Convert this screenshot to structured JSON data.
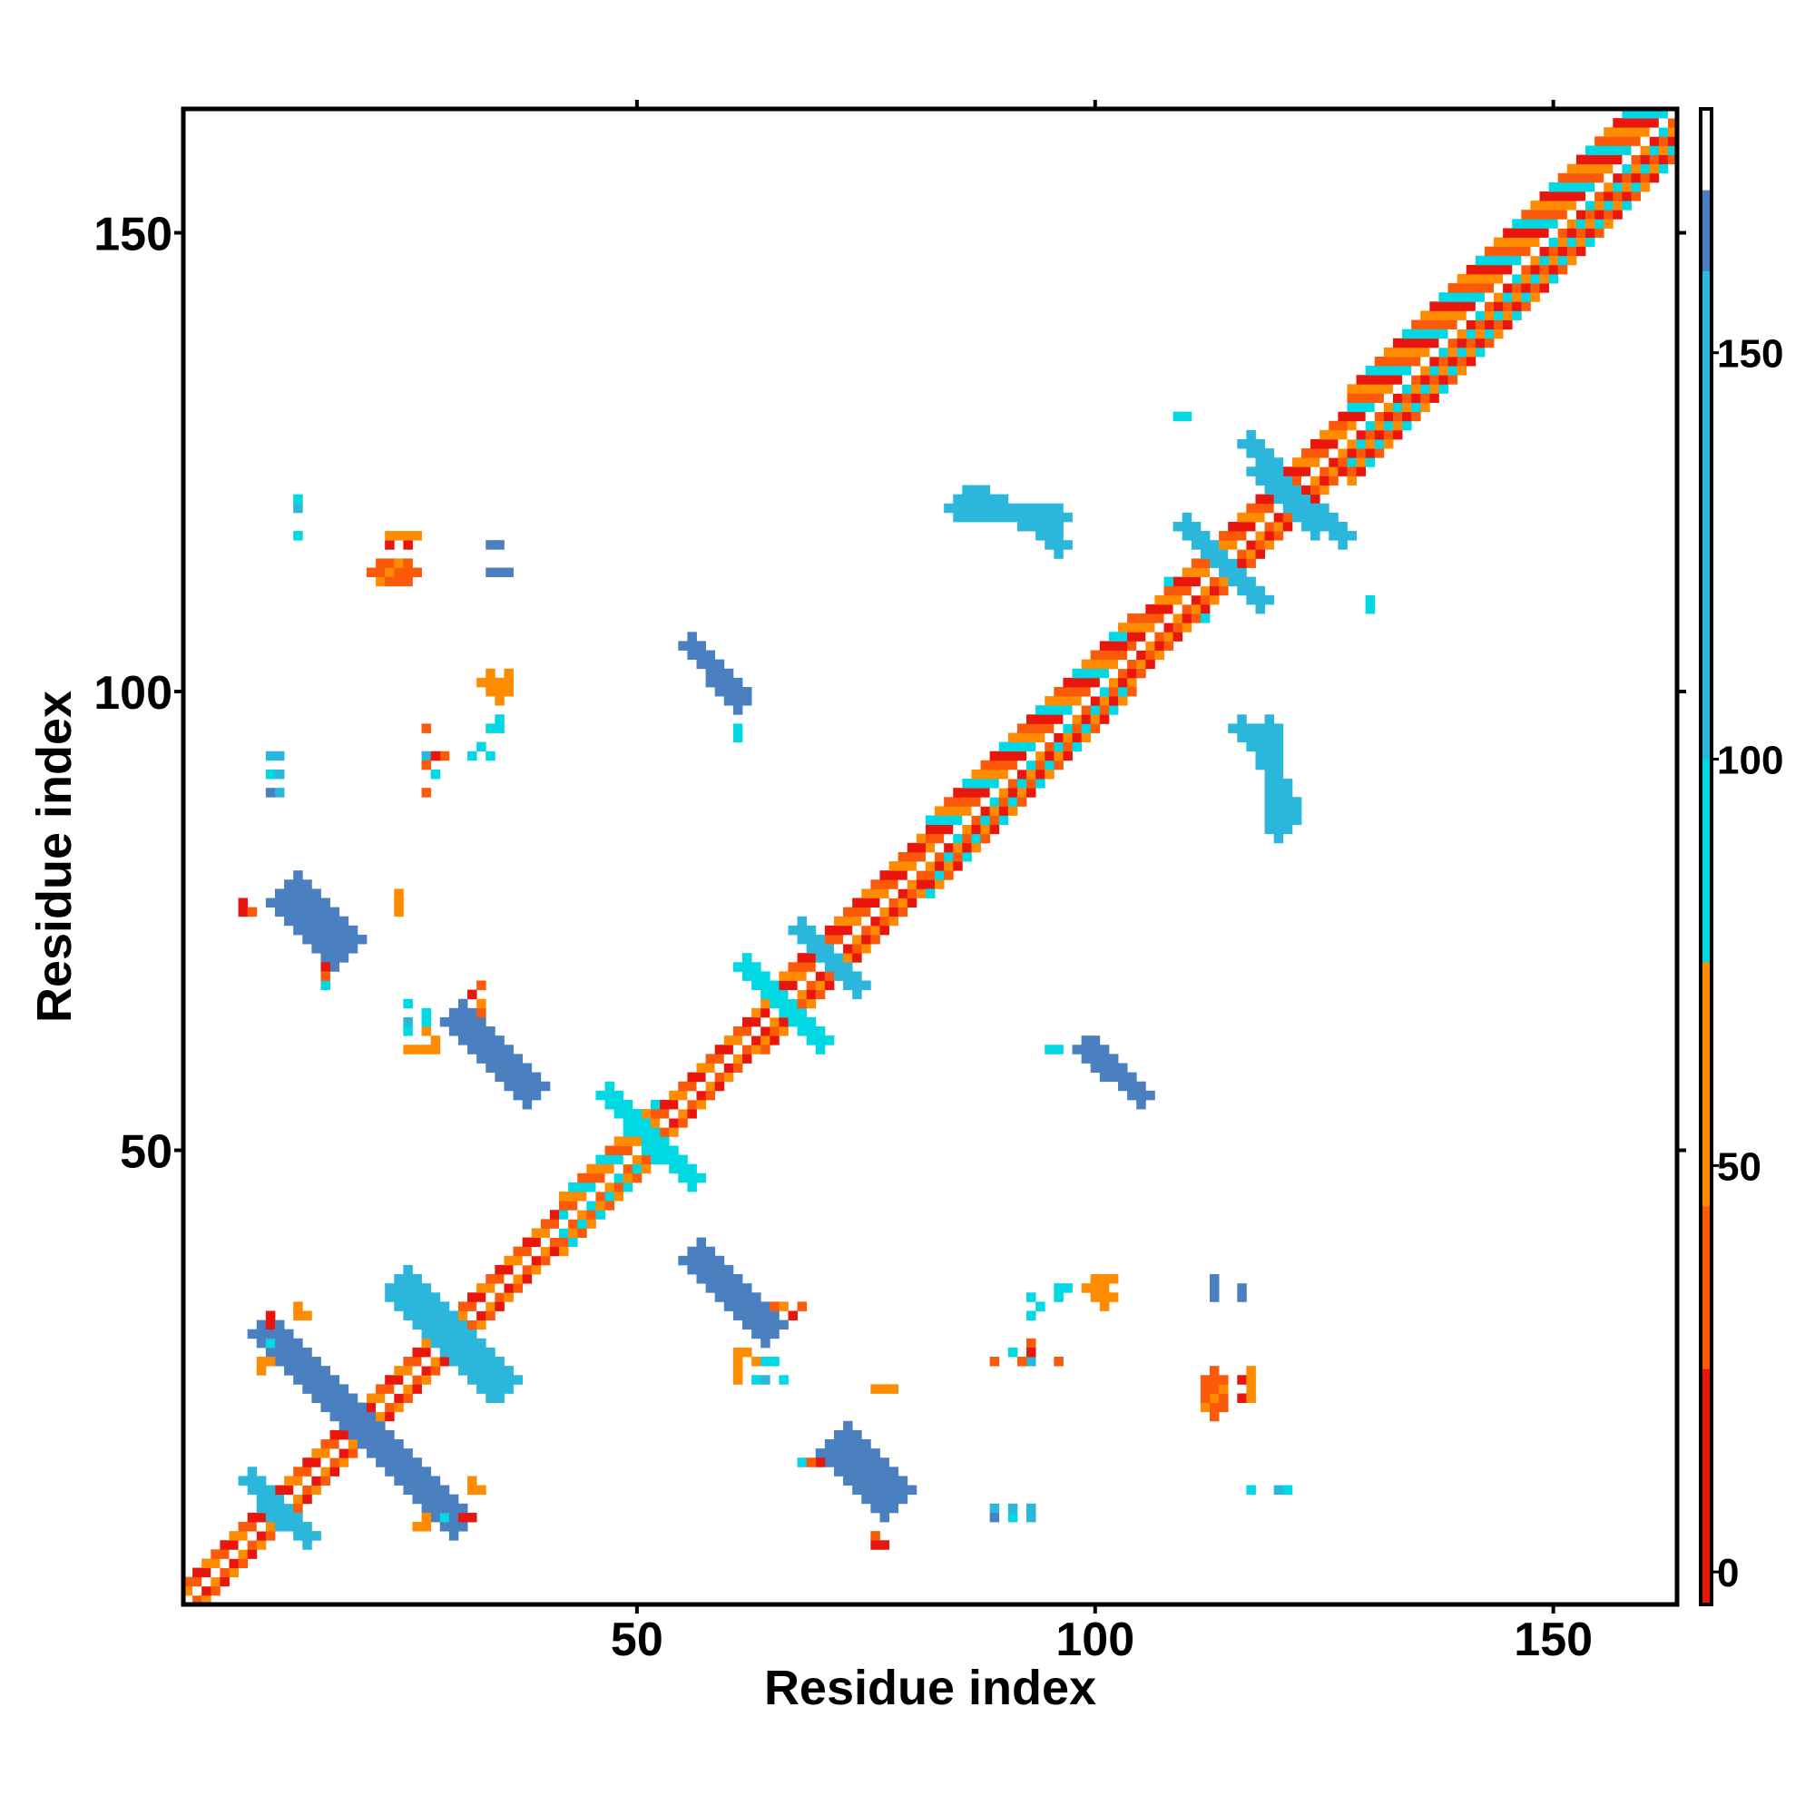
{
  "chart_data": {
    "type": "heatmap",
    "title": "",
    "xlabel": "Residue index",
    "ylabel": "Residue index",
    "xlim": [
      0.5,
      163.5
    ],
    "ylim": [
      0.5,
      163.5
    ],
    "x_ticks": [
      50,
      100,
      150
    ],
    "y_ticks": [
      50,
      100,
      150
    ],
    "x_tick_labels": [
      "50",
      "100",
      "150"
    ],
    "y_tick_labels": [
      "50",
      "100",
      "150"
    ],
    "colorbar": {
      "range": [
        -4,
        180
      ],
      "ticks": [
        0,
        50,
        100,
        150
      ],
      "tick_labels": [
        "0",
        "50",
        "100",
        "150"
      ],
      "bands": [
        {
          "from": -4,
          "to": 25,
          "color": "#e8160c"
        },
        {
          "from": 25,
          "to": 45,
          "color": "#fa5a0a"
        },
        {
          "from": 45,
          "to": 75,
          "color": "#ff8c00"
        },
        {
          "from": 75,
          "to": 100,
          "color": "#00d8e4"
        },
        {
          "from": 100,
          "to": 160,
          "color": "#2bb6dc"
        },
        {
          "from": 160,
          "to": 170,
          "color": "#4b80c0"
        },
        {
          "from": 170,
          "to": 180,
          "color": "#ffffff"
        }
      ]
    },
    "diagonal": {
      "from": 1,
      "to": 163,
      "segments": [
        {
          "from": 1,
          "to": 20,
          "halfwidth": 2,
          "colors": [
            "#fa5a0a",
            "#e8160c",
            "#ff8c00"
          ]
        },
        {
          "from": 20,
          "to": 42,
          "halfwidth": 2,
          "colors": [
            "#fa5a0a",
            "#e8160c",
            "#ff8c00"
          ]
        },
        {
          "from": 42,
          "to": 52,
          "halfwidth": 3,
          "colors": [
            "#ff8c00",
            "#00d8e4",
            "#fa5a0a"
          ]
        },
        {
          "from": 52,
          "to": 64,
          "halfwidth": 2,
          "colors": [
            "#fa5a0a",
            "#e8160c",
            "#ff8c00"
          ]
        },
        {
          "from": 64,
          "to": 82,
          "halfwidth": 3,
          "colors": [
            "#ff8c00",
            "#fa5a0a",
            "#e8160c"
          ]
        },
        {
          "from": 82,
          "to": 104,
          "halfwidth": 4,
          "colors": [
            "#fa5a0a",
            "#e8160c",
            "#00d8e4",
            "#ff8c00"
          ]
        },
        {
          "from": 104,
          "to": 128,
          "halfwidth": 3,
          "colors": [
            "#fa5a0a",
            "#e8160c",
            "#ff8c00"
          ]
        },
        {
          "from": 128,
          "to": 163,
          "halfwidth": 5,
          "colors": [
            "#fa5a0a",
            "#ff8c00",
            "#e8160c",
            "#00d8e4"
          ]
        }
      ]
    },
    "patches": [
      {
        "x1": 10,
        "y1": 30,
        "x2": 20,
        "y2": 20,
        "w": 1.5,
        "color": "#4b80c0"
      },
      {
        "x1": 20,
        "y1": 20,
        "x2": 28,
        "y2": 12,
        "w": 1.5,
        "color": "#4b80c0"
      },
      {
        "x1": 25,
        "y1": 35,
        "x2": 34,
        "y2": 25,
        "w": 1.5,
        "color": "#2bb6dc"
      },
      {
        "x1": 8,
        "y1": 14,
        "x2": 11,
        "y2": 10,
        "w": 1.2,
        "color": "#2bb6dc"
      },
      {
        "x1": 57,
        "y1": 38,
        "x2": 64,
        "y2": 31,
        "w": 1.5,
        "color": "#4b80c0"
      },
      {
        "x1": 73,
        "y1": 18,
        "x2": 78,
        "y2": 13,
        "w": 1.5,
        "color": "#4b80c0"
      },
      {
        "x1": 12,
        "y1": 77,
        "x2": 17,
        "y2": 72,
        "w": 1.5,
        "color": "#4b80c0"
      },
      {
        "x1": 31,
        "y1": 64,
        "x2": 38,
        "y2": 57,
        "w": 1.5,
        "color": "#4b80c0"
      },
      {
        "x1": 56,
        "y1": 105,
        "x2": 61,
        "y2": 99,
        "w": 1.4,
        "color": "#4b80c0"
      },
      {
        "x1": 100,
        "y1": 61,
        "x2": 105,
        "y2": 56,
        "w": 1.4,
        "color": "#4b80c0"
      },
      {
        "x1": 64,
        "y1": 68,
        "x2": 70,
        "y2": 62,
        "w": 1.4,
        "color": "#00d8e4"
      },
      {
        "x1": 68,
        "y1": 74,
        "x2": 74,
        "y2": 68,
        "w": 1.2,
        "color": "#2bb6dc"
      },
      {
        "x1": 48,
        "y1": 55,
        "x2": 56,
        "y2": 47,
        "w": 1.2,
        "color": "#00d8e4"
      },
      {
        "x1": 110,
        "y1": 118,
        "x2": 118,
        "y2": 110,
        "w": 1.4,
        "color": "#2bb6dc"
      },
      {
        "x1": 117,
        "y1": 127,
        "x2": 124,
        "y2": 118,
        "w": 1.4,
        "color": "#2bb6dc"
      },
      {
        "x1": 120,
        "y1": 90,
        "x2": 121,
        "y2": 86,
        "w": 1.0,
        "color": "#2bb6dc"
      },
      {
        "x1": 116,
        "y1": 96,
        "x2": 119,
        "y2": 93,
        "w": 1.0,
        "color": "#2bb6dc"
      },
      {
        "x1": 85,
        "y1": 120,
        "x2": 88,
        "y2": 120,
        "w": 0.8,
        "color": "#2bb6dc"
      },
      {
        "x1": 92,
        "y1": 119,
        "x2": 96,
        "y2": 119,
        "w": 0.8,
        "color": "#2bb6dc"
      },
      {
        "x1": 22,
        "y1": 113,
        "x2": 25,
        "y2": 113,
        "w": 0.8,
        "color": "#fa5a0a"
      },
      {
        "x1": 34,
        "y1": 101,
        "x2": 35,
        "y2": 100,
        "w": 0.8,
        "color": "#ff8c00"
      }
    ],
    "dots": [
      [
        13,
        120,
        "#2bb6dc"
      ],
      [
        13,
        117,
        "#2bb6dc"
      ],
      [
        24,
        117,
        "#ff8c00"
      ],
      [
        25,
        116,
        "#e8160c"
      ],
      [
        26,
        117,
        "#ff8c00"
      ],
      [
        34,
        116,
        "#4b80c0"
      ],
      [
        34,
        113,
        "#4b80c0"
      ],
      [
        35,
        113,
        "#4b80c0"
      ],
      [
        10,
        93,
        "#2bb6dc"
      ],
      [
        10,
        91,
        "#00d8e4"
      ],
      [
        10,
        89,
        "#2bb6dc"
      ],
      [
        11,
        89,
        "#2bb6dc"
      ],
      [
        27,
        96,
        "#fa5a0a"
      ],
      [
        27,
        93,
        "#e8160c"
      ],
      [
        29,
        93,
        "#fa5a0a"
      ],
      [
        28,
        91,
        "#ff8c00"
      ],
      [
        27,
        89,
        "#fa5a0a"
      ],
      [
        33,
        94,
        "#00d8e4"
      ],
      [
        34,
        96,
        "#00d8e4"
      ],
      [
        32,
        93,
        "#00d8e4"
      ],
      [
        7,
        77,
        "#e8160c"
      ],
      [
        24,
        77,
        "#ff8c00"
      ],
      [
        24,
        78,
        "#ff8c00"
      ],
      [
        16,
        70,
        "#e8160c"
      ],
      [
        25,
        64,
        "#2bb6dc"
      ],
      [
        27,
        63,
        "#00d8e4"
      ],
      [
        26,
        61,
        "#ff8c00"
      ],
      [
        27,
        61,
        "#ff8c00"
      ],
      [
        28,
        61,
        "#ff8c00"
      ],
      [
        25,
        61,
        "#ff8c00"
      ],
      [
        32,
        67,
        "#e8160c"
      ],
      [
        33,
        68,
        "#fa5a0a"
      ],
      [
        95,
        61,
        "#00d8e4"
      ],
      [
        96,
        61,
        "#00d8e4"
      ],
      [
        13,
        32,
        "#ff8c00"
      ],
      [
        10,
        31,
        "#e8160c"
      ],
      [
        9,
        27,
        "#ff8c00"
      ],
      [
        10,
        27,
        "#ff8c00"
      ],
      [
        32,
        14,
        "#ff8c00"
      ],
      [
        33,
        13,
        "#ff8c00"
      ],
      [
        31,
        10,
        "#e8160c"
      ],
      [
        32,
        10,
        "#e8160c"
      ],
      [
        29,
        10,
        "#00d8e4"
      ],
      [
        26,
        9,
        "#ff8c00"
      ],
      [
        27,
        9,
        "#ff8c00"
      ],
      [
        62,
        28,
        "#ff8c00"
      ],
      [
        63,
        27,
        "#ff8c00"
      ],
      [
        64,
        27,
        "#00d8e4"
      ],
      [
        65,
        27,
        "#00d8e4"
      ],
      [
        63,
        25,
        "#00d8e4"
      ],
      [
        66,
        25,
        "#00d8e4"
      ],
      [
        65,
        33,
        "#fa5a0a"
      ],
      [
        66,
        33,
        "#ff8c00"
      ],
      [
        76,
        24,
        "#ff8c00"
      ],
      [
        77,
        24,
        "#ff8c00"
      ],
      [
        68,
        16,
        "#00d8e4"
      ],
      [
        69,
        16,
        "#fa5a0a"
      ],
      [
        76,
        7,
        "#e8160c"
      ],
      [
        76,
        8,
        "#fa5a0a"
      ],
      [
        89,
        27,
        "#fa5a0a"
      ],
      [
        91,
        28,
        "#00d8e4"
      ],
      [
        93,
        28,
        "#e8160c"
      ],
      [
        92,
        27,
        "#fa5a0a"
      ],
      [
        93,
        27,
        "#2bb6dc"
      ],
      [
        96,
        27,
        "#fa5a0a"
      ],
      [
        93,
        34,
        "#00d8e4"
      ],
      [
        96,
        35,
        "#00d8e4"
      ],
      [
        97,
        35,
        "#00d8e4"
      ],
      [
        100,
        35,
        "#ff8c00"
      ],
      [
        101,
        36,
        "#ff8c00"
      ],
      [
        102,
        36,
        "#ff8c00"
      ],
      [
        113,
        36,
        "#4b80c0"
      ],
      [
        113,
        35,
        "#4b80c0"
      ],
      [
        116,
        35,
        "#4b80c0"
      ],
      [
        112,
        22,
        "#ff8c00"
      ],
      [
        113,
        23,
        "#ff8c00"
      ],
      [
        113,
        22,
        "#fa5a0a"
      ],
      [
        114,
        24,
        "#ff8c00"
      ],
      [
        116,
        23,
        "#e8160c"
      ],
      [
        117,
        23,
        "#ff8c00"
      ],
      [
        117,
        25,
        "#ff8c00"
      ],
      [
        117,
        13,
        "#00d8e4"
      ],
      [
        121,
        13,
        "#00d8e4"
      ],
      [
        89,
        11,
        "#2bb6dc"
      ],
      [
        89,
        10,
        "#4b80c0"
      ],
      [
        91,
        11,
        "#2bb6dc"
      ],
      [
        93,
        11,
        "#2bb6dc"
      ],
      [
        93,
        10,
        "#2bb6dc"
      ],
      [
        110,
        130,
        "#00d8e4"
      ],
      [
        130,
        109,
        "#00d8e4"
      ],
      [
        108,
        112,
        "#00d8e4"
      ]
    ]
  }
}
